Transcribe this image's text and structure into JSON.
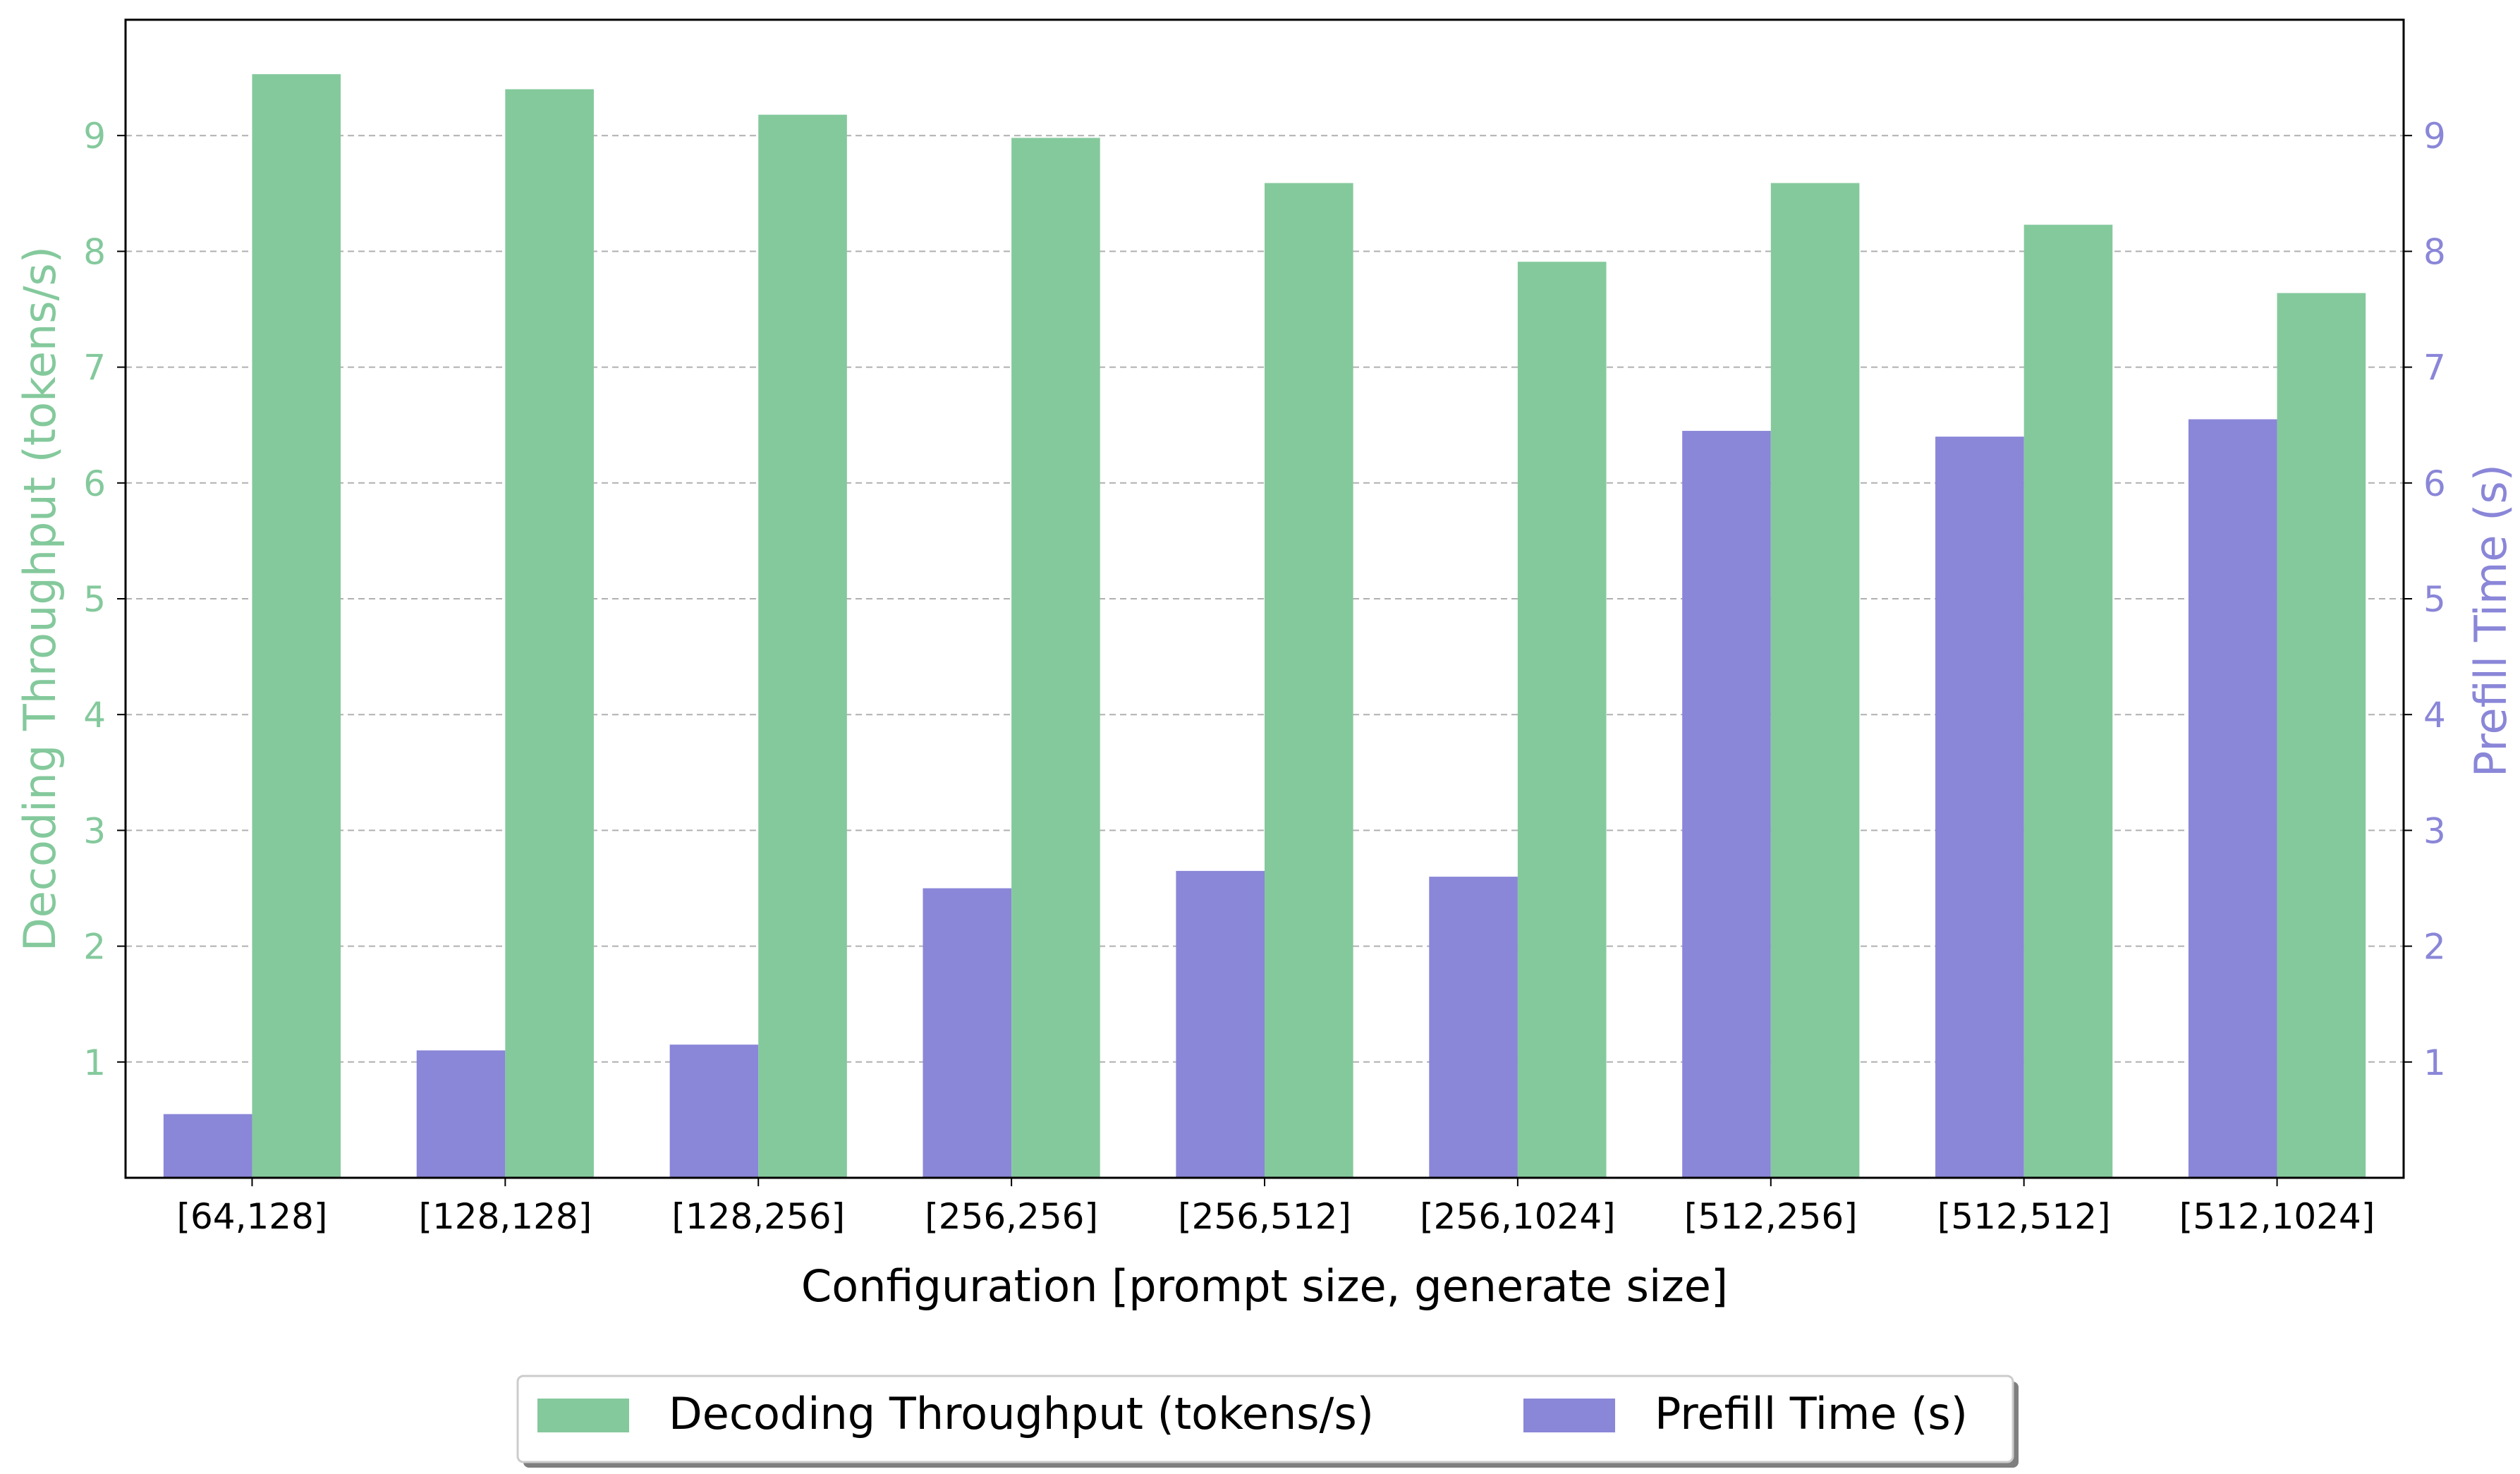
{
  "chart_data": {
    "type": "bar",
    "categories": [
      "[64,128]",
      "[128,128]",
      "[128,256]",
      "[256,256]",
      "[256,512]",
      "[256,1024]",
      "[512,256]",
      "[512,512]",
      "[512,1024]"
    ],
    "series": [
      {
        "name": "Prefill Time (s)",
        "axis": "right",
        "color": "#8a86d8",
        "values": [
          0.55,
          1.1,
          1.15,
          2.5,
          2.65,
          2.6,
          6.45,
          6.4,
          6.55
        ]
      },
      {
        "name": "Decoding Throughput (tokens/s)",
        "axis": "left",
        "color": "#84c99c",
        "values": [
          9.53,
          9.4,
          9.18,
          8.98,
          8.59,
          7.91,
          8.59,
          8.23,
          7.64
        ]
      }
    ],
    "xlabel": "Configuration [prompt size, generate size]",
    "ylabel_left": "Decoding Throughput (tokens/s)",
    "ylabel_right": "Prefill Time (s)",
    "ylim": [
      0,
      10
    ],
    "yticks": [
      1,
      2,
      3,
      4,
      5,
      6,
      7,
      8,
      9
    ],
    "grid": "horizontal dashed",
    "legend_position": "bottom-center",
    "legend": [
      {
        "label": "Decoding Throughput (tokens/s)",
        "color": "#84c99c"
      },
      {
        "label": "Prefill Time (s)",
        "color": "#8a86d8"
      }
    ],
    "left_axis_color": "#84c99c",
    "right_axis_color": "#8a86d8"
  }
}
